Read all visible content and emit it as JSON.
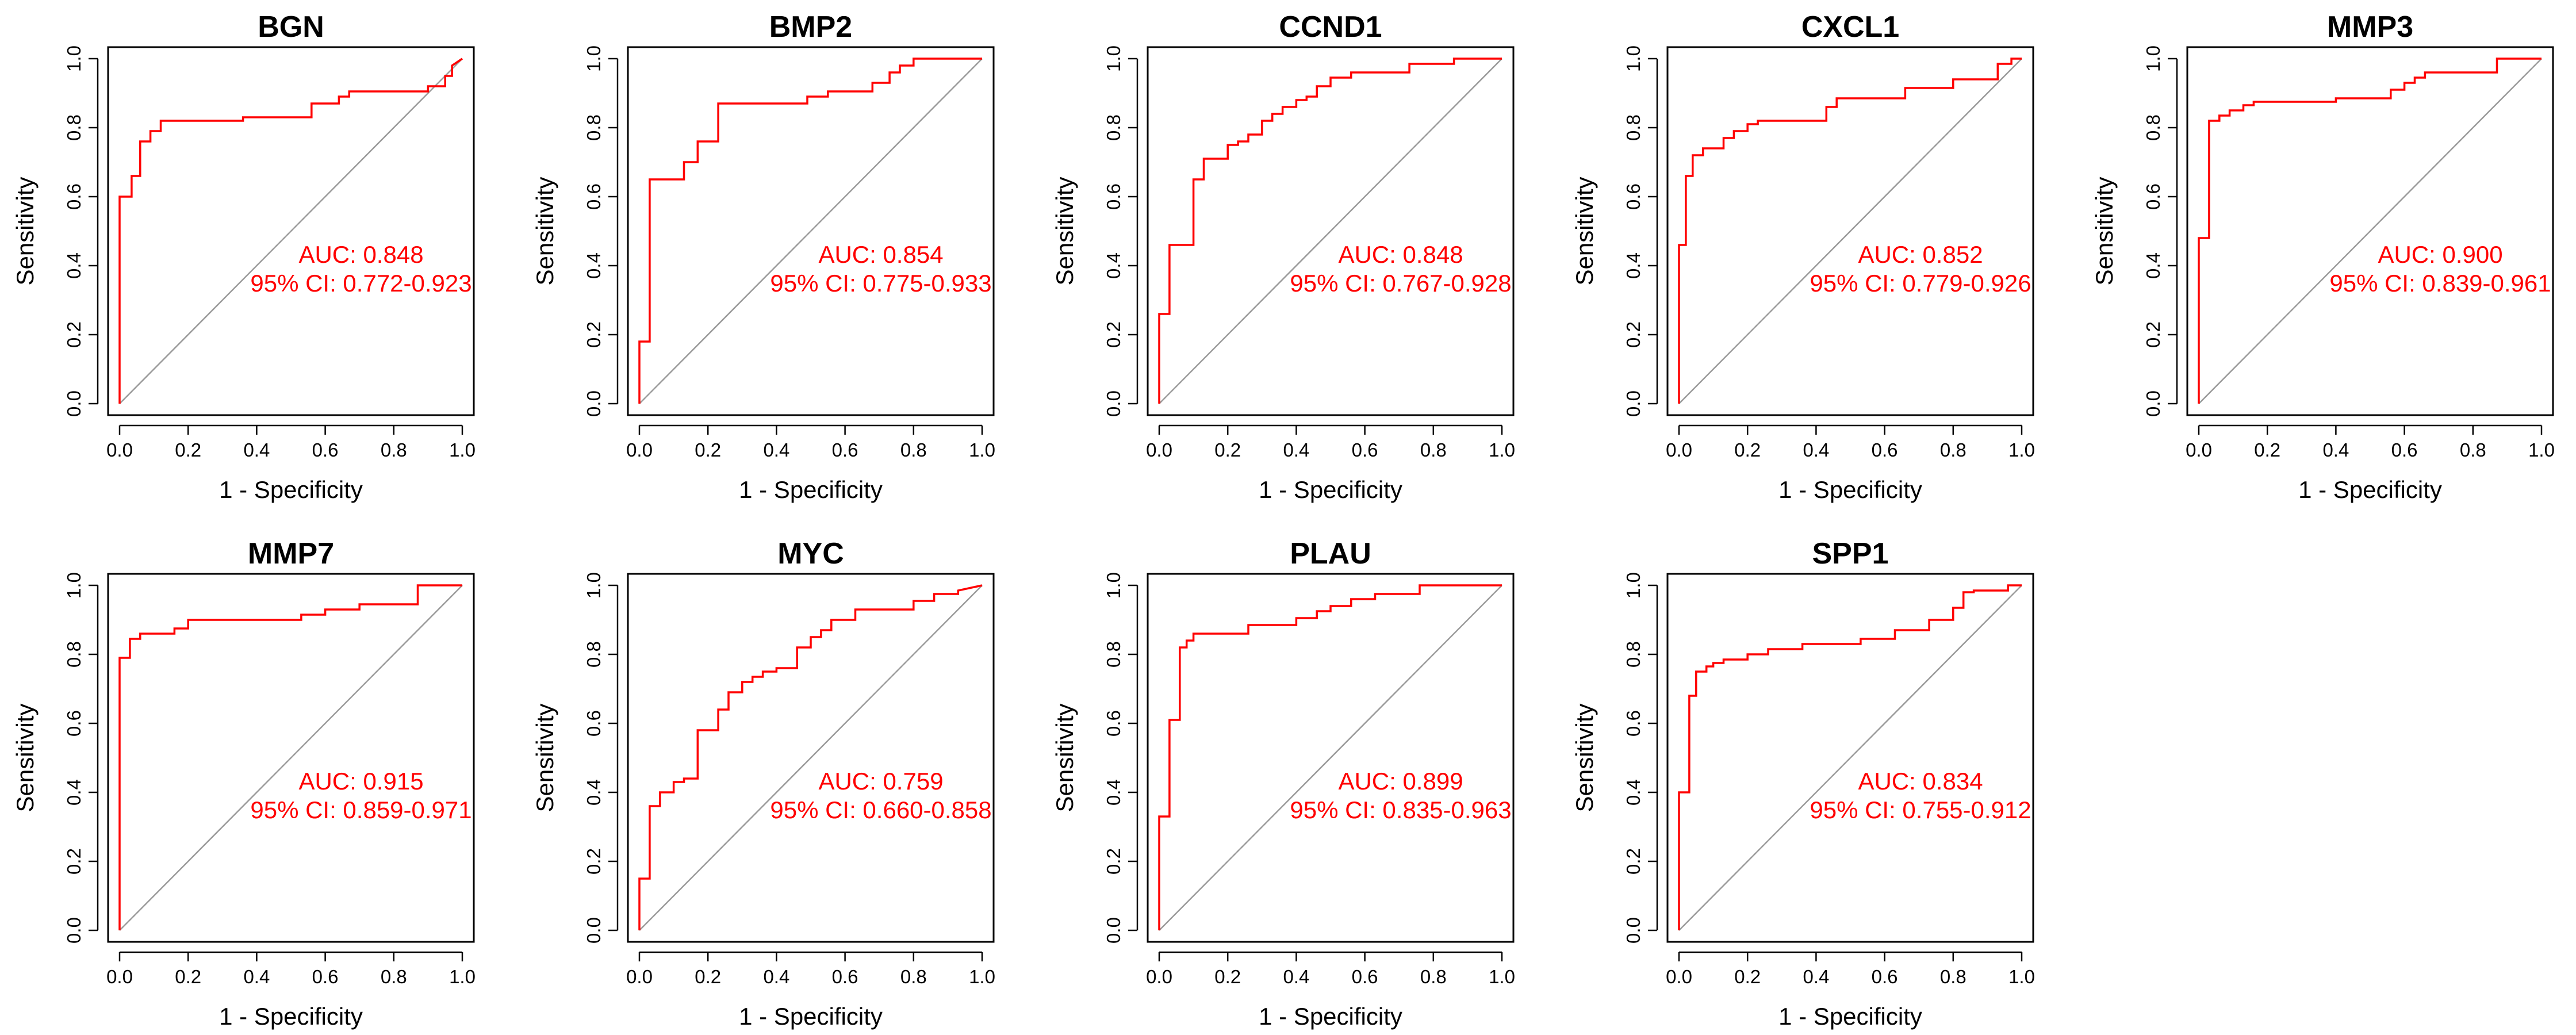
{
  "figure": {
    "background": "#ffffff",
    "curve_color": "#ff0000",
    "diagonal_color": "#9a9a9a"
  },
  "chart_data": [
    {
      "type": "line",
      "title": "BGN",
      "xlabel": "1 - Specificity",
      "ylabel": "Sensitivity",
      "xlim": [
        0,
        1
      ],
      "ylim": [
        0,
        1
      ],
      "grid": false,
      "xticks": [
        "0.0",
        "0.2",
        "0.4",
        "0.6",
        "0.8",
        "1.0"
      ],
      "yticks": [
        "0.0",
        "0.2",
        "0.4",
        "0.6",
        "0.8",
        "1.0"
      ],
      "auc_text": "AUC: 0.848",
      "ci_text": "95% CI: 0.772-0.923",
      "series": [
        {
          "x": [
            0,
            0,
            0.035,
            0.035,
            0.06,
            0.06,
            0.09,
            0.09,
            0.12,
            0.12,
            0.36,
            0.36,
            0.56,
            0.56,
            0.64,
            0.64,
            0.67,
            0.67,
            0.9,
            0.9,
            0.95,
            0.95,
            0.97,
            0.97,
            1.0
          ],
          "y": [
            0,
            0.6,
            0.6,
            0.66,
            0.66,
            0.76,
            0.76,
            0.79,
            0.79,
            0.82,
            0.82,
            0.83,
            0.83,
            0.87,
            0.87,
            0.89,
            0.89,
            0.905,
            0.905,
            0.92,
            0.92,
            0.95,
            0.95,
            0.98,
            1.0
          ]
        }
      ]
    },
    {
      "type": "line",
      "title": "BMP2",
      "xlabel": "1 - Specificity",
      "ylabel": "Sensitivity",
      "xlim": [
        0,
        1
      ],
      "ylim": [
        0,
        1
      ],
      "grid": false,
      "xticks": [
        "0.0",
        "0.2",
        "0.4",
        "0.6",
        "0.8",
        "1.0"
      ],
      "yticks": [
        "0.0",
        "0.2",
        "0.4",
        "0.6",
        "0.8",
        "1.0"
      ],
      "auc_text": "AUC: 0.854",
      "ci_text": "95% CI: 0.775-0.933",
      "series": [
        {
          "x": [
            0,
            0,
            0.03,
            0.03,
            0.13,
            0.13,
            0.17,
            0.17,
            0.23,
            0.23,
            0.49,
            0.49,
            0.55,
            0.55,
            0.68,
            0.68,
            0.73,
            0.73,
            0.76,
            0.76,
            0.8,
            0.8,
            1.0
          ],
          "y": [
            0,
            0.18,
            0.18,
            0.65,
            0.65,
            0.7,
            0.7,
            0.76,
            0.76,
            0.87,
            0.87,
            0.89,
            0.89,
            0.905,
            0.905,
            0.93,
            0.93,
            0.96,
            0.96,
            0.98,
            0.98,
            1.0,
            1.0
          ]
        }
      ]
    },
    {
      "type": "line",
      "title": "CCND1",
      "xlabel": "1 - Specificity",
      "ylabel": "Sensitivity",
      "xlim": [
        0,
        1
      ],
      "ylim": [
        0,
        1
      ],
      "grid": false,
      "xticks": [
        "0.0",
        "0.2",
        "0.4",
        "0.6",
        "0.8",
        "1.0"
      ],
      "yticks": [
        "0.0",
        "0.2",
        "0.4",
        "0.6",
        "0.8",
        "1.0"
      ],
      "auc_text": "AUC: 0.848",
      "ci_text": "95% CI: 0.767-0.928",
      "series": [
        {
          "x": [
            0,
            0,
            0.03,
            0.03,
            0.1,
            0.1,
            0.13,
            0.13,
            0.2,
            0.2,
            0.23,
            0.23,
            0.26,
            0.26,
            0.3,
            0.3,
            0.33,
            0.33,
            0.36,
            0.36,
            0.4,
            0.4,
            0.43,
            0.43,
            0.46,
            0.46,
            0.5,
            0.5,
            0.56,
            0.56,
            0.73,
            0.73,
            0.86,
            0.86,
            1.0
          ],
          "y": [
            0,
            0.26,
            0.26,
            0.46,
            0.46,
            0.65,
            0.65,
            0.71,
            0.71,
            0.75,
            0.75,
            0.76,
            0.76,
            0.78,
            0.78,
            0.82,
            0.82,
            0.84,
            0.84,
            0.86,
            0.86,
            0.88,
            0.88,
            0.89,
            0.89,
            0.92,
            0.92,
            0.945,
            0.945,
            0.96,
            0.96,
            0.985,
            0.985,
            1.0,
            1.0
          ]
        }
      ]
    },
    {
      "type": "line",
      "title": "CXCL1",
      "xlabel": "1 - Specificity",
      "ylabel": "Sensitivity",
      "xlim": [
        0,
        1
      ],
      "ylim": [
        0,
        1
      ],
      "grid": false,
      "xticks": [
        "0.0",
        "0.2",
        "0.4",
        "0.6",
        "0.8",
        "1.0"
      ],
      "yticks": [
        "0.0",
        "0.2",
        "0.4",
        "0.6",
        "0.8",
        "1.0"
      ],
      "auc_text": "AUC: 0.852",
      "ci_text": "95% CI: 0.779-0.926",
      "series": [
        {
          "x": [
            0,
            0,
            0.02,
            0.02,
            0.04,
            0.04,
            0.07,
            0.07,
            0.13,
            0.13,
            0.16,
            0.16,
            0.2,
            0.2,
            0.23,
            0.23,
            0.43,
            0.43,
            0.46,
            0.46,
            0.66,
            0.66,
            0.8,
            0.8,
            0.93,
            0.93,
            0.97,
            0.97,
            1.0
          ],
          "y": [
            0,
            0.46,
            0.46,
            0.66,
            0.66,
            0.72,
            0.72,
            0.74,
            0.74,
            0.77,
            0.77,
            0.79,
            0.79,
            0.81,
            0.81,
            0.82,
            0.82,
            0.86,
            0.86,
            0.885,
            0.885,
            0.915,
            0.915,
            0.94,
            0.94,
            0.985,
            0.985,
            1.0,
            1.0
          ]
        }
      ]
    },
    {
      "type": "line",
      "title": "MMP3",
      "xlabel": "1 - Specificity",
      "ylabel": "Sensitivity",
      "xlim": [
        0,
        1
      ],
      "ylim": [
        0,
        1
      ],
      "grid": false,
      "xticks": [
        "0.0",
        "0.2",
        "0.4",
        "0.6",
        "0.8",
        "1.0"
      ],
      "yticks": [
        "0.0",
        "0.2",
        "0.4",
        "0.6",
        "0.8",
        "1.0"
      ],
      "auc_text": "AUC: 0.900",
      "ci_text": "95% CI: 0.839-0.961",
      "series": [
        {
          "x": [
            0,
            0,
            0.03,
            0.03,
            0.06,
            0.06,
            0.09,
            0.09,
            0.13,
            0.13,
            0.16,
            0.16,
            0.4,
            0.4,
            0.56,
            0.56,
            0.6,
            0.6,
            0.63,
            0.63,
            0.66,
            0.66,
            0.87,
            0.87,
            1.0
          ],
          "y": [
            0,
            0.48,
            0.48,
            0.82,
            0.82,
            0.835,
            0.835,
            0.85,
            0.85,
            0.865,
            0.865,
            0.875,
            0.875,
            0.885,
            0.885,
            0.91,
            0.91,
            0.93,
            0.93,
            0.945,
            0.945,
            0.96,
            0.96,
            1.0,
            1.0
          ]
        }
      ]
    },
    {
      "type": "line",
      "title": "MMP7",
      "xlabel": "1 - Specificity",
      "ylabel": "Sensitivity",
      "xlim": [
        0,
        1
      ],
      "ylim": [
        0,
        1
      ],
      "grid": false,
      "xticks": [
        "0.0",
        "0.2",
        "0.4",
        "0.6",
        "0.8",
        "1.0"
      ],
      "yticks": [
        "0.0",
        "0.2",
        "0.4",
        "0.6",
        "0.8",
        "1.0"
      ],
      "auc_text": "AUC: 0.915",
      "ci_text": "95% CI: 0.859-0.971",
      "series": [
        {
          "x": [
            0,
            0,
            0.03,
            0.03,
            0.06,
            0.06,
            0.16,
            0.16,
            0.2,
            0.2,
            0.53,
            0.53,
            0.6,
            0.6,
            0.7,
            0.7,
            0.87,
            0.87,
            1.0
          ],
          "y": [
            0,
            0.79,
            0.79,
            0.845,
            0.845,
            0.86,
            0.86,
            0.875,
            0.875,
            0.9,
            0.9,
            0.915,
            0.915,
            0.93,
            0.93,
            0.945,
            0.945,
            1.0,
            1.0
          ]
        }
      ]
    },
    {
      "type": "line",
      "title": "MYC",
      "xlabel": "1 - Specificity",
      "ylabel": "Sensitivity",
      "xlim": [
        0,
        1
      ],
      "ylim": [
        0,
        1
      ],
      "grid": false,
      "xticks": [
        "0.0",
        "0.2",
        "0.4",
        "0.6",
        "0.8",
        "1.0"
      ],
      "yticks": [
        "0.0",
        "0.2",
        "0.4",
        "0.6",
        "0.8",
        "1.0"
      ],
      "auc_text": "AUC: 0.759",
      "ci_text": "95% CI: 0.660-0.858",
      "series": [
        {
          "x": [
            0,
            0,
            0.03,
            0.03,
            0.06,
            0.06,
            0.1,
            0.1,
            0.13,
            0.13,
            0.17,
            0.17,
            0.23,
            0.23,
            0.26,
            0.26,
            0.3,
            0.3,
            0.33,
            0.33,
            0.36,
            0.36,
            0.4,
            0.4,
            0.46,
            0.46,
            0.5,
            0.5,
            0.53,
            0.53,
            0.56,
            0.56,
            0.63,
            0.63,
            0.8,
            0.8,
            0.86,
            0.86,
            0.93,
            0.93,
            1.0
          ],
          "y": [
            0,
            0.15,
            0.15,
            0.36,
            0.36,
            0.4,
            0.4,
            0.43,
            0.43,
            0.44,
            0.44,
            0.58,
            0.58,
            0.64,
            0.64,
            0.69,
            0.69,
            0.72,
            0.72,
            0.735,
            0.735,
            0.75,
            0.75,
            0.76,
            0.76,
            0.82,
            0.82,
            0.85,
            0.85,
            0.87,
            0.87,
            0.9,
            0.9,
            0.93,
            0.93,
            0.955,
            0.955,
            0.975,
            0.975,
            0.985,
            1.0
          ]
        }
      ]
    },
    {
      "type": "line",
      "title": "PLAU",
      "xlabel": "1 - Specificity",
      "ylabel": "Sensitivity",
      "xlim": [
        0,
        1
      ],
      "ylim": [
        0,
        1
      ],
      "grid": false,
      "xticks": [
        "0.0",
        "0.2",
        "0.4",
        "0.6",
        "0.8",
        "1.0"
      ],
      "yticks": [
        "0.0",
        "0.2",
        "0.4",
        "0.6",
        "0.8",
        "1.0"
      ],
      "auc_text": "AUC: 0.899",
      "ci_text": "95% CI: 0.835-0.963",
      "series": [
        {
          "x": [
            0,
            0,
            0.03,
            0.03,
            0.06,
            0.06,
            0.08,
            0.08,
            0.1,
            0.1,
            0.26,
            0.26,
            0.4,
            0.4,
            0.46,
            0.46,
            0.5,
            0.5,
            0.56,
            0.56,
            0.63,
            0.63,
            0.76,
            0.76,
            1.0
          ],
          "y": [
            0,
            0.33,
            0.33,
            0.61,
            0.61,
            0.82,
            0.82,
            0.84,
            0.84,
            0.86,
            0.86,
            0.885,
            0.885,
            0.905,
            0.905,
            0.925,
            0.925,
            0.94,
            0.94,
            0.96,
            0.96,
            0.975,
            0.975,
            1.0,
            1.0
          ]
        }
      ]
    },
    {
      "type": "line",
      "title": "SPP1",
      "xlabel": "1 - Specificity",
      "ylabel": "Sensitivity",
      "xlim": [
        0,
        1
      ],
      "ylim": [
        0,
        1
      ],
      "grid": false,
      "xticks": [
        "0.0",
        "0.2",
        "0.4",
        "0.6",
        "0.8",
        "1.0"
      ],
      "yticks": [
        "0.0",
        "0.2",
        "0.4",
        "0.6",
        "0.8",
        "1.0"
      ],
      "auc_text": "AUC: 0.834",
      "ci_text": "95% CI: 0.755-0.912",
      "series": [
        {
          "x": [
            0,
            0,
            0.03,
            0.03,
            0.05,
            0.05,
            0.08,
            0.08,
            0.1,
            0.1,
            0.13,
            0.13,
            0.2,
            0.2,
            0.26,
            0.26,
            0.36,
            0.36,
            0.53,
            0.53,
            0.63,
            0.63,
            0.73,
            0.73,
            0.8,
            0.8,
            0.83,
            0.83,
            0.86,
            0.86,
            0.96,
            0.96,
            1.0
          ],
          "y": [
            0,
            0.4,
            0.4,
            0.68,
            0.68,
            0.75,
            0.75,
            0.765,
            0.765,
            0.775,
            0.775,
            0.785,
            0.785,
            0.8,
            0.8,
            0.815,
            0.815,
            0.83,
            0.83,
            0.845,
            0.845,
            0.87,
            0.87,
            0.9,
            0.9,
            0.935,
            0.935,
            0.98,
            0.98,
            0.985,
            0.985,
            1.0,
            1.0
          ]
        }
      ]
    }
  ]
}
